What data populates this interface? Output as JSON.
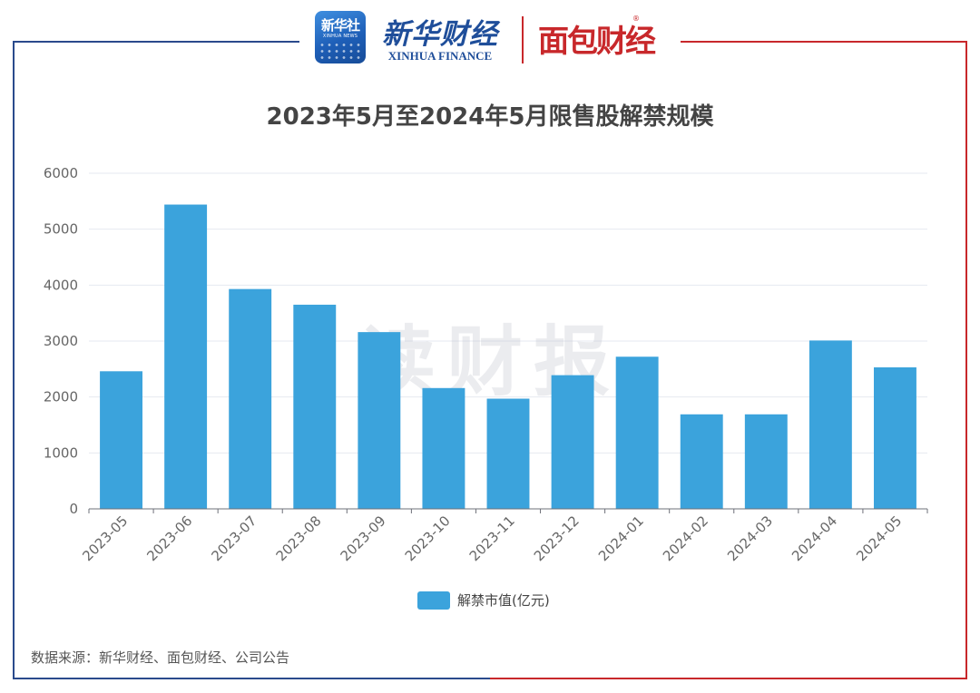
{
  "header": {
    "xinhua_seal_text": "新华社",
    "xinhua_seal_subtext": "XINHUA NEWS",
    "xinhua_finance_cn": "新华财经",
    "xinhua_finance_en": "XINHUA FINANCE",
    "mianbao_brand": "面包财经",
    "mianbao_reg_mark": "®"
  },
  "watermark": "读财报",
  "source_note": "数据来源：新华财经、面包财经、公司公告",
  "colors": {
    "bar": "#3ba3dc",
    "frame_left": "#2a4a8c",
    "frame_right": "#c8282b",
    "title": "#444444",
    "axis_text": "#666666",
    "grid": "#e6e9f0"
  },
  "chart_data": {
    "type": "bar",
    "title": "2023年5月至2024年5月限售股解禁规模",
    "categories": [
      "2023-05",
      "2023-06",
      "2023-07",
      "2023-08",
      "2023-09",
      "2023-10",
      "2023-11",
      "2023-12",
      "2024-01",
      "2024-02",
      "2024-03",
      "2024-04",
      "2024-05"
    ],
    "series": [
      {
        "name": "解禁市值(亿元)",
        "values": [
          2460,
          5440,
          3930,
          3650,
          3160,
          2160,
          1970,
          2390,
          2720,
          1690,
          1690,
          3010,
          2530
        ]
      }
    ],
    "y_ticks": [
      "0",
      "1000",
      "2000",
      "3000",
      "4000",
      "5000",
      "6000"
    ],
    "ylim": [
      0,
      6000
    ],
    "grid": true,
    "legend_position": "bottom-center",
    "x_tick_rotation": "rotated"
  }
}
